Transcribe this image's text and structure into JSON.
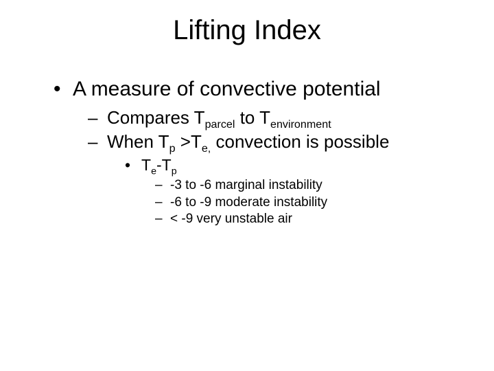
{
  "title": "Lifting Index",
  "l1_text": "A measure of convective potential",
  "l2a_pre": "Compares T",
  "l2a_sub1": "parcel",
  "l2a_mid": " to T",
  "l2a_sub2": "environment",
  "l2b_pre": "When T",
  "l2b_sub1": "p",
  "l2b_mid": " >T",
  "l2b_sub2": "e,",
  "l2b_post": " convection is possible",
  "l3_pre": "T",
  "l3_sub1": "e",
  "l3_mid": "-T",
  "l3_sub2": "p",
  "l4a": "-3 to -6 marginal instability",
  "l4b": "-6 to -9 moderate instability",
  "l4c": "< -9 very unstable air",
  "colors": {
    "background": "#ffffff",
    "text": "#000000"
  },
  "fonts": {
    "family": "Arial",
    "title_size_pt": 40,
    "l1_size_pt": 30,
    "l2_size_pt": 26,
    "l3_size_pt": 23,
    "l4_size_pt": 19
  },
  "bullets": {
    "l1": "•",
    "l2": "–",
    "l3": "•",
    "l4": "–"
  }
}
